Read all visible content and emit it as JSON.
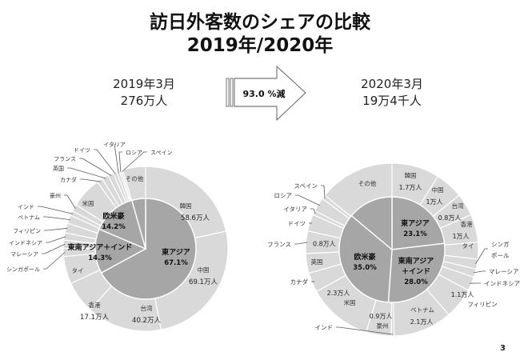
{
  "header": {
    "title": "訪日外客数のシェアの比較",
    "subtitle": "2019年/2020年"
  },
  "left_summary": {
    "period": "2019年3月",
    "total": "276万人"
  },
  "right_summary": {
    "period": "2020年3月",
    "total": "19万4千人"
  },
  "arrow": {
    "label": "93.0 %減"
  },
  "page_number": "3",
  "colors": {
    "inner": "#a6a6a6",
    "outer": "#d9d9d9",
    "stroke": "#ffffff",
    "leader": "#595959"
  },
  "chart_data": [
    {
      "type": "pie",
      "title": "2019年3月",
      "total_label": "276万人",
      "inner": [
        {
          "label": "東アジア",
          "value": 67.1,
          "display": "67.1%"
        },
        {
          "label": "東南アジア＋インド",
          "value": 14.3,
          "display": "14.3%"
        },
        {
          "label": "欧米豪",
          "value": 14.2,
          "display": "14.2%"
        },
        {
          "label": "その他",
          "value": 4.4,
          "display": ""
        }
      ],
      "outer": [
        {
          "label": "韓国",
          "value": 58.6,
          "display": "58.6万人",
          "group": "東アジア"
        },
        {
          "label": "中国",
          "value": 69.1,
          "display": "69.1万人",
          "group": "東アジア"
        },
        {
          "label": "台湾",
          "value": 40.2,
          "display": "40.2万人",
          "group": "東アジア"
        },
        {
          "label": "香港",
          "value": 17.1,
          "display": "17.1万人",
          "group": "東アジア"
        },
        {
          "label": "タイ",
          "value": 14.7,
          "display": "",
          "group": "東南アジア＋インド"
        },
        {
          "label": "シンガポール",
          "value": 4.4,
          "display": "",
          "group": "東南アジア＋インド"
        },
        {
          "label": "マレーシア",
          "value": 4.3,
          "display": "",
          "group": "東南アジア＋インド"
        },
        {
          "label": "インドネシア",
          "value": 3.9,
          "display": "",
          "group": "東南アジア＋インド"
        },
        {
          "label": "フィリピン",
          "value": 5.2,
          "display": "",
          "group": "東南アジア＋インド"
        },
        {
          "label": "ベトナム",
          "value": 4.4,
          "display": "",
          "group": "東南アジア＋インド"
        },
        {
          "label": "インド",
          "value": 2.5,
          "display": "",
          "group": "東南アジア＋インド"
        },
        {
          "label": "豪州",
          "value": 3.8,
          "display": "",
          "group": "欧米豪"
        },
        {
          "label": "米国",
          "value": 16.5,
          "display": "",
          "group": "欧米豪"
        },
        {
          "label": "カナダ",
          "value": 3.0,
          "display": "",
          "group": "欧米豪"
        },
        {
          "label": "英国",
          "value": 3.6,
          "display": "",
          "group": "欧米豪"
        },
        {
          "label": "フランス",
          "value": 2.9,
          "display": "",
          "group": "欧米豪"
        },
        {
          "label": "ドイツ",
          "value": 1.9,
          "display": "",
          "group": "欧米豪"
        },
        {
          "label": "イタリア",
          "value": 1.6,
          "display": "",
          "group": "欧米豪"
        },
        {
          "label": "ロシア",
          "value": 0.9,
          "display": "",
          "group": "欧米豪"
        },
        {
          "label": "スペイン",
          "value": 1.0,
          "display": "",
          "group": "欧米豪"
        },
        {
          "label": "その他",
          "value": 12.1,
          "display": "",
          "group": "その他"
        }
      ]
    },
    {
      "type": "pie",
      "title": "2020年3月",
      "total_label": "19万4千人",
      "inner": [
        {
          "label": "東アジア",
          "value": 23.1,
          "display": "23.1%"
        },
        {
          "label": "東南アジア＋インド",
          "value": 28.0,
          "display": "28.0%"
        },
        {
          "label": "欧米豪",
          "value": 35.0,
          "display": "35.0%"
        },
        {
          "label": "その他",
          "value": 13.9,
          "display": ""
        }
      ],
      "outer": [
        {
          "label": "韓国",
          "value": 1.7,
          "display": "1.7万人",
          "group": "東アジア"
        },
        {
          "label": "中国",
          "value": 1.0,
          "display": "1万人",
          "group": "東アジア"
        },
        {
          "label": "台湾",
          "value": 0.8,
          "display": "0.8万人",
          "group": "東アジア"
        },
        {
          "label": "香港",
          "value": 1.0,
          "display": "1万人",
          "group": "東アジア"
        },
        {
          "label": "タイ",
          "value": 0.6,
          "display": "",
          "group": "東南アジア＋インド"
        },
        {
          "label": "シンガポール",
          "value": 0.35,
          "display": "",
          "group": "東南アジア＋インド"
        },
        {
          "label": "マレーシア",
          "value": 0.3,
          "display": "",
          "group": "東南アジア＋インド"
        },
        {
          "label": "インドネシア",
          "value": 0.5,
          "display": "",
          "group": "東南アジア＋インド"
        },
        {
          "label": "フィリピン",
          "value": 1.1,
          "display": "1.1万人",
          "group": "東南アジア＋インド"
        },
        {
          "label": "ベトナム",
          "value": 2.1,
          "display": "2.1万人",
          "group": "東南アジア＋インド"
        },
        {
          "label": "インド",
          "value": 0.1,
          "display": "",
          "group": "東南アジア＋インド"
        },
        {
          "label": "豪州",
          "value": 0.9,
          "display": "0.9万人",
          "group": "欧米豪"
        },
        {
          "label": "米国",
          "value": 2.3,
          "display": "2.3万人",
          "group": "欧米豪"
        },
        {
          "label": "カナダ",
          "value": 0.7,
          "display": "",
          "group": "欧米豪"
        },
        {
          "label": "英国",
          "value": 0.7,
          "display": "",
          "group": "欧米豪"
        },
        {
          "label": "フランス",
          "value": 0.8,
          "display": "0.8万人",
          "group": "欧米豪"
        },
        {
          "label": "ドイツ",
          "value": 0.6,
          "display": "",
          "group": "欧米豪"
        },
        {
          "label": "イタリア",
          "value": 0.15,
          "display": "",
          "group": "欧米豪"
        },
        {
          "label": "ロシア",
          "value": 0.5,
          "display": "",
          "group": "欧米豪"
        },
        {
          "label": "スペイン",
          "value": 0.15,
          "display": "",
          "group": "欧米豪"
        },
        {
          "label": "その他",
          "value": 2.7,
          "display": "",
          "group": "その他"
        }
      ]
    }
  ]
}
